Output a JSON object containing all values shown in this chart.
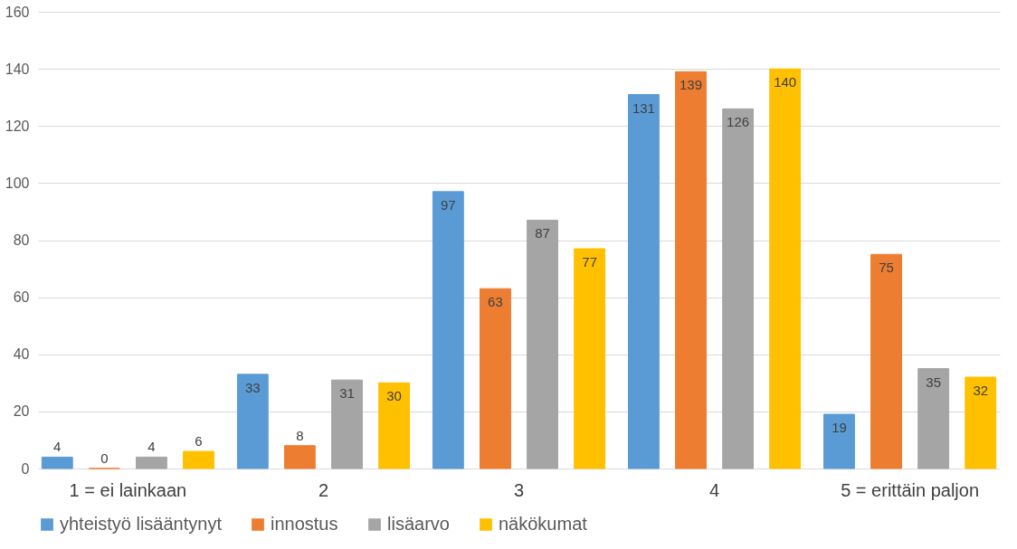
{
  "chart_data": {
    "type": "bar",
    "categories": [
      "1 = ei lainkaan",
      "2",
      "3",
      "4",
      "5 = erittäin paljon"
    ],
    "series": [
      {
        "name": "yhteistyö lisääntynyt",
        "color": "#5b9bd5",
        "values": [
          4,
          33,
          97,
          131,
          19
        ]
      },
      {
        "name": "innostus",
        "color": "#ed7d31",
        "values": [
          0,
          8,
          63,
          139,
          75
        ]
      },
      {
        "name": "lisäarvo",
        "color": "#a5a5a5",
        "values": [
          4,
          31,
          87,
          126,
          35
        ]
      },
      {
        "name": "näkökumat",
        "color": "#ffc000",
        "values": [
          6,
          30,
          77,
          140,
          32
        ]
      }
    ],
    "ylim": [
      0,
      160
    ],
    "yticks": [
      0,
      20,
      40,
      60,
      80,
      100,
      120,
      140,
      160
    ],
    "grid": "y",
    "legend": "bottom",
    "data_labels": true
  }
}
